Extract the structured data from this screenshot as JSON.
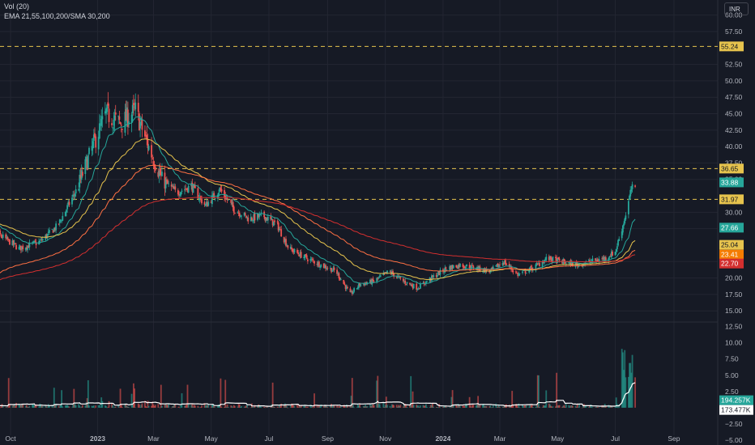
{
  "legend": {
    "volume_label": "Vol (20)",
    "ema_label": "EMA 21,55,100,200/SMA 30,200"
  },
  "currency": "INR",
  "colors": {
    "background": "#161a25",
    "grid": "#232632",
    "up": "#26a69a",
    "down": "#ef5350",
    "ema21": "#26a69a",
    "ema55": "#e6c34d",
    "ema100": "#ff7043",
    "ema200": "#d32f2f",
    "vol_sma": "#ffffff",
    "hline": "#e6c34d"
  },
  "chart_data": [
    {
      "type": "candlestick",
      "title": "",
      "x_axis": {
        "labels": [
          "Oct",
          "2023",
          "Mar",
          "May",
          "Jul",
          "Sep",
          "Nov",
          "2024",
          "Mar",
          "May",
          "Jul",
          "Sep"
        ],
        "range": [
          "2022-09-01",
          "2024-09-25"
        ]
      },
      "y_axis": {
        "ticks": [
          "60.00",
          "57.50",
          "52.50",
          "50.00",
          "47.50",
          "45.00",
          "42.50",
          "40.00",
          "37.50",
          "35.00",
          "30.00",
          "27.50",
          "22.50",
          "20.00",
          "17.50",
          "15.00"
        ],
        "range": [
          13.3,
          62.3
        ],
        "grid": true
      },
      "price_path": [
        [
          "2022-09-01",
          29.0
        ],
        [
          "2022-09-20",
          26.5
        ],
        [
          "2022-10-10",
          24.5
        ],
        [
          "2022-11-01",
          25.5
        ],
        [
          "2022-11-20",
          28.0
        ],
        [
          "2022-12-10",
          33.5
        ],
        [
          "2022-12-28",
          40.5
        ],
        [
          "2023-01-10",
          45.0
        ],
        [
          "2023-01-25",
          43.5
        ],
        [
          "2023-02-10",
          45.5
        ],
        [
          "2023-02-25",
          39.5
        ],
        [
          "2023-03-10",
          35.0
        ],
        [
          "2023-03-25",
          33.0
        ],
        [
          "2023-04-10",
          34.0
        ],
        [
          "2023-04-25",
          31.0
        ],
        [
          "2023-05-10",
          33.5
        ],
        [
          "2023-05-25",
          30.5
        ],
        [
          "2023-06-10",
          29.0
        ],
        [
          "2023-06-25",
          29.5
        ],
        [
          "2023-07-10",
          28.0
        ],
        [
          "2023-07-22",
          24.5
        ],
        [
          "2023-08-10",
          23.0
        ],
        [
          "2023-08-25",
          22.0
        ],
        [
          "2023-09-10",
          21.0
        ],
        [
          "2023-09-25",
          17.5
        ],
        [
          "2023-10-05",
          19.0
        ],
        [
          "2023-10-20",
          19.5
        ],
        [
          "2023-11-05",
          21.0
        ],
        [
          "2023-11-20",
          19.5
        ],
        [
          "2023-12-05",
          18.5
        ],
        [
          "2023-12-20",
          20.0
        ],
        [
          "2024-01-05",
          21.5
        ],
        [
          "2024-01-20",
          22.0
        ],
        [
          "2024-02-05",
          21.5
        ],
        [
          "2024-02-20",
          21.0
        ],
        [
          "2024-03-05",
          22.5
        ],
        [
          "2024-03-20",
          20.5
        ],
        [
          "2024-04-05",
          21.5
        ],
        [
          "2024-04-20",
          23.0
        ],
        [
          "2024-05-05",
          22.5
        ],
        [
          "2024-05-20",
          22.0
        ],
        [
          "2024-06-05",
          22.5
        ],
        [
          "2024-06-20",
          23.0
        ],
        [
          "2024-07-01",
          24.0
        ],
        [
          "2024-07-10",
          28.5
        ],
        [
          "2024-07-18",
          33.5
        ],
        [
          "2024-07-22",
          33.88
        ]
      ],
      "horizontal_lines": [
        55.24,
        36.65,
        31.97
      ],
      "price_labels": [
        {
          "value": "55.24",
          "kind": "hline"
        },
        {
          "value": "36.65",
          "kind": "hline"
        },
        {
          "value": "33.88",
          "kind": "last-price"
        },
        {
          "value": "31.97",
          "kind": "hline"
        },
        {
          "value": "27.66",
          "kind": "ema21"
        },
        {
          "value": "25.04",
          "kind": "ema55"
        },
        {
          "value": "23.41",
          "kind": "ema100"
        },
        {
          "value": "22.70",
          "kind": "ema200"
        }
      ]
    },
    {
      "type": "bar",
      "title": "Vol (20)",
      "y_axis": {
        "ticks": [
          "12.50",
          "10.00",
          "7.50",
          "5.00",
          "2.50",
          "−2.50",
          "−5.00"
        ],
        "range": [
          -5.5,
          13.2
        ]
      },
      "value_labels": [
        {
          "value": "194.257K",
          "kind": "volume"
        },
        {
          "value": "173.477K",
          "kind": "volume-sma"
        }
      ]
    }
  ]
}
